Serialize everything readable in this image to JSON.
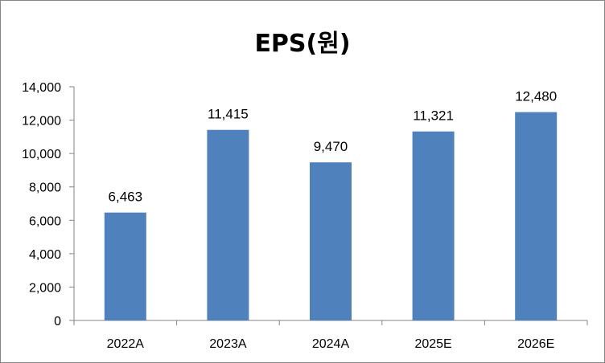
{
  "chart_data": {
    "type": "bar",
    "title": "EPS(원)",
    "categories": [
      "2022A",
      "2023A",
      "2024A",
      "2025E",
      "2026E"
    ],
    "values": [
      6463,
      11415,
      9470,
      11321,
      12480
    ],
    "value_labels": [
      "6,463",
      "11,415",
      "9,470",
      "11,321",
      "12,480"
    ],
    "ylim": [
      0,
      14000
    ],
    "yticks": [
      0,
      2000,
      4000,
      6000,
      8000,
      10000,
      12000,
      14000
    ],
    "ytick_labels": [
      "0",
      "2,000",
      "4,000",
      "6,000",
      "8,000",
      "10,000",
      "12,000",
      "14,000"
    ],
    "xlabel": "",
    "ylabel": "",
    "grid": false,
    "legend": "none",
    "bar_color": "#4f81bd"
  }
}
